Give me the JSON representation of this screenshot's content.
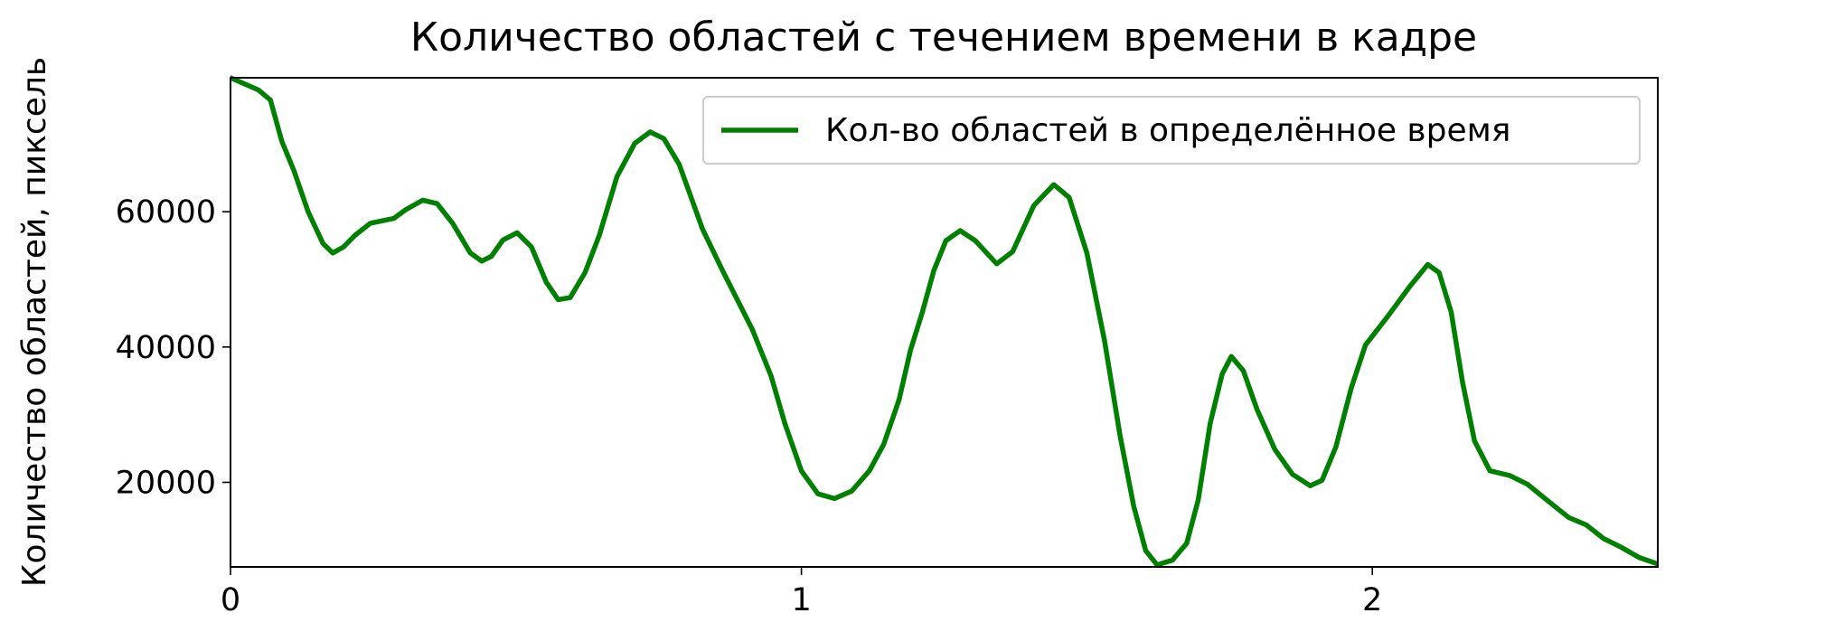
{
  "chart_data": {
    "type": "line",
    "title": "Количество областей с течением времени в кадре",
    "y_label": "Количество областей, пиксель",
    "series": [
      {
        "name": "Кол-во областей в определённое время",
        "color": "#008000",
        "x": [
          0,
          0.049,
          0.07,
          0.09,
          0.111,
          0.136,
          0.162,
          0.179,
          0.198,
          0.218,
          0.245,
          0.286,
          0.307,
          0.337,
          0.362,
          0.389,
          0.42,
          0.44,
          0.457,
          0.477,
          0.502,
          0.527,
          0.553,
          0.574,
          0.595,
          0.621,
          0.646,
          0.677,
          0.708,
          0.735,
          0.759,
          0.786,
          0.827,
          0.862,
          0.914,
          0.947,
          0.971,
          1.0,
          1.029,
          1.058,
          1.088,
          1.119,
          1.144,
          1.171,
          1.191,
          1.212,
          1.232,
          1.253,
          1.278,
          1.305,
          1.342,
          1.37,
          1.407,
          1.442,
          1.469,
          1.5,
          1.531,
          1.558,
          1.582,
          1.603,
          1.623,
          1.65,
          1.675,
          1.695,
          1.716,
          1.737,
          1.753,
          1.774,
          1.798,
          1.829,
          1.86,
          1.891,
          1.912,
          1.936,
          1.963,
          1.988,
          2.025,
          2.066,
          2.097,
          2.117,
          2.138,
          2.158,
          2.179,
          2.206,
          2.241,
          2.272,
          2.313,
          2.344,
          2.375,
          2.405,
          2.436,
          2.467,
          2.498
        ],
        "values": [
          79800,
          78000,
          76500,
          70400,
          66100,
          60000,
          55300,
          53900,
          54800,
          56500,
          58300,
          59000,
          60300,
          61700,
          61200,
          58300,
          53900,
          52700,
          53400,
          55800,
          56900,
          54800,
          49600,
          47000,
          47300,
          51000,
          56500,
          65200,
          70100,
          71800,
          70800,
          67000,
          57400,
          51300,
          42600,
          35700,
          28700,
          21700,
          18300,
          17600,
          18700,
          21700,
          25600,
          32200,
          39500,
          45200,
          51300,
          55700,
          57200,
          55700,
          52300,
          54100,
          60900,
          64000,
          62100,
          53900,
          40900,
          27000,
          16500,
          9900,
          7800,
          8500,
          11000,
          17400,
          28700,
          36000,
          38600,
          36500,
          30800,
          24900,
          21200,
          19500,
          20300,
          25200,
          33900,
          40300,
          44300,
          49000,
          52200,
          51000,
          45200,
          34800,
          26100,
          21700,
          21000,
          19700,
          16900,
          14800,
          13700,
          11700,
          10400,
          8900,
          8000
        ]
      }
    ],
    "xlim": [
      0,
      2.5
    ],
    "ylim": [
      7500,
      79800
    ],
    "xticks": [
      0,
      1,
      2
    ],
    "yticks": [
      20000,
      40000,
      60000
    ],
    "legend": "upper right"
  }
}
